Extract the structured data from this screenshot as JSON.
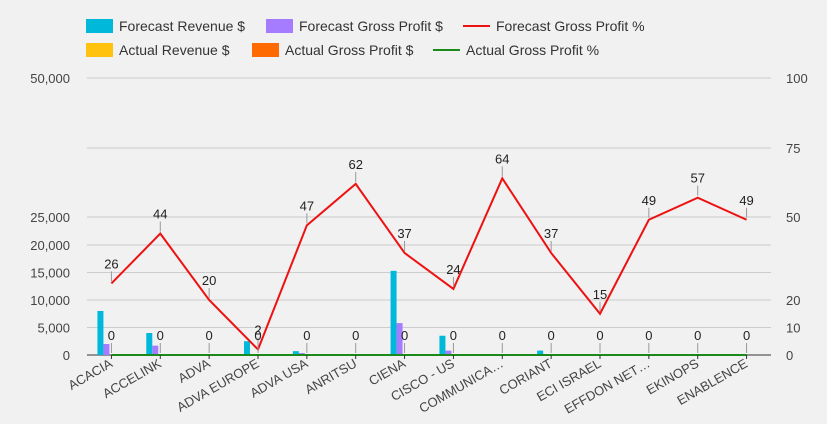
{
  "chart_data": {
    "type": "bar",
    "categories": [
      "ACACIA",
      "ACCELINK",
      "ADVA",
      "ADVA EUROPE",
      "ADVA USA",
      "ANRITSU",
      "CIENA",
      "CISCO - US",
      "COMMUNICA…",
      "CORIANT",
      "ECI ISRAEL",
      "EFFDON NET…",
      "EKINOPS",
      "ENABLENCE"
    ],
    "series": [
      {
        "name": "Forecast Revenue $",
        "type": "bar",
        "axis": "left",
        "color": "#00b8d9",
        "values": [
          8000,
          4000,
          0,
          2500,
          700,
          0,
          15300,
          3500,
          0,
          800,
          0,
          0,
          0,
          0
        ]
      },
      {
        "name": "Forecast Gross Profit $",
        "type": "bar",
        "axis": "left",
        "color": "#a57cff",
        "values": [
          2000,
          1700,
          0,
          100,
          350,
          0,
          5800,
          800,
          0,
          0,
          0,
          0,
          0,
          0
        ]
      },
      {
        "name": "Forecast Gross Profit %",
        "type": "line",
        "axis": "right",
        "color": "#ee1111",
        "values": [
          26,
          44,
          20,
          2,
          47,
          62,
          37,
          24,
          64,
          37,
          15,
          49,
          57,
          49
        ],
        "labels": [
          "26",
          "44",
          "20",
          "2",
          "47",
          "62",
          "37",
          "24",
          "64",
          "37",
          "15",
          "49",
          "57",
          "49"
        ]
      },
      {
        "name": "Actual Revenue $",
        "type": "bar",
        "axis": "left",
        "color": "#ffc20e",
        "values": [
          0,
          0,
          0,
          0,
          0,
          0,
          0,
          0,
          0,
          0,
          0,
          0,
          0,
          0
        ]
      },
      {
        "name": "Actual Gross Profit $",
        "type": "bar",
        "axis": "left",
        "color": "#ff6a00",
        "values": [
          0,
          0,
          0,
          0,
          0,
          0,
          0,
          0,
          0,
          0,
          0,
          0,
          0,
          0
        ]
      },
      {
        "name": "Actual Gross Profit %",
        "type": "line",
        "axis": "right",
        "color": "#1a8a1a",
        "values": [
          0,
          0,
          0,
          0,
          0,
          0,
          0,
          0,
          0,
          0,
          0,
          0,
          0,
          0
        ],
        "labels": [
          "0",
          "0",
          "0",
          "0",
          "0",
          "0",
          "0",
          "0",
          "0",
          "0",
          "0",
          "0",
          "0",
          "0"
        ]
      }
    ],
    "left_ticks": [
      "0",
      "5,000",
      "10,000",
      "15,000",
      "20,000",
      "25,000",
      "50,000"
    ],
    "left_tick_values": [
      0,
      5000,
      10000,
      15000,
      20000,
      25000,
      50000
    ],
    "right_ticks": [
      "0",
      "10",
      "20",
      "50",
      "75",
      "100"
    ],
    "right_tick_values": [
      0,
      10,
      20,
      50,
      75,
      100
    ],
    "right_ylim": [
      0,
      100
    ],
    "legend_position": "top-left"
  }
}
